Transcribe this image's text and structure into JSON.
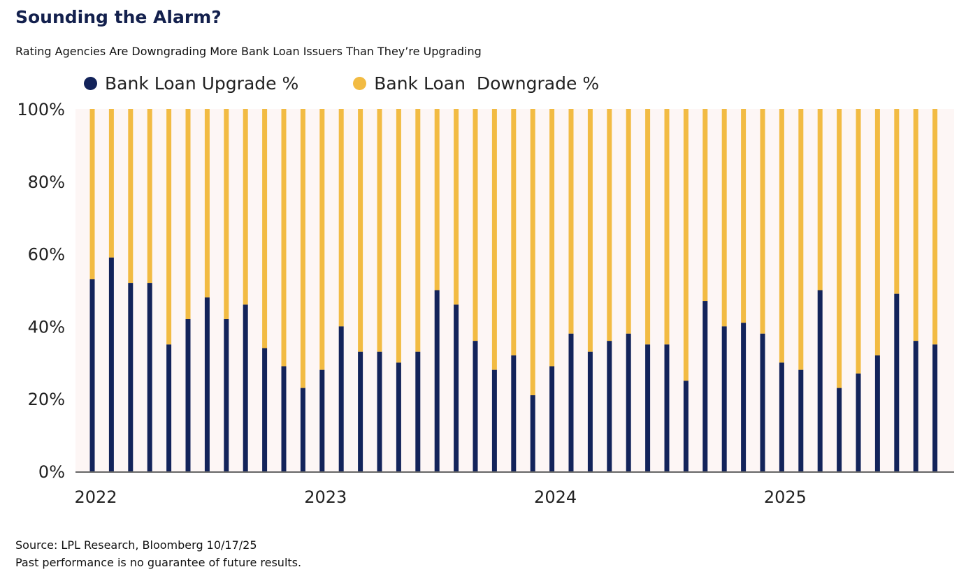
{
  "header": {
    "title": "Sounding the Alarm?",
    "subtitle": "Rating Agencies Are Downgrading More Bank Loan Issuers Than They’re Upgrading"
  },
  "footer": {
    "source": "Source: LPL Research, Bloomberg 10/17/25",
    "disclaimer": "Past performance is no guarantee of future results."
  },
  "colors": {
    "upgrade": "#13235a",
    "downgrade": "#f2bb43",
    "plot_background": "#fdf6f5"
  },
  "chart_data": {
    "type": "bar",
    "stacked": true,
    "title": "Sounding the Alarm?",
    "subtitle": "Rating Agencies Are Downgrading More Bank Loan Issuers Than They’re Upgrading",
    "legend_position": "top-left",
    "grid": false,
    "ylim": [
      0,
      100
    ],
    "yticks": [
      "0%",
      "20%",
      "40%",
      "60%",
      "80%",
      "100%"
    ],
    "xtick_labels": [
      "2022",
      "2023",
      "2024",
      "2025"
    ],
    "series": [
      {
        "name": "Bank Loan Upgrade %",
        "values": [
          53,
          59,
          52,
          52,
          35,
          42,
          48,
          42,
          46,
          34,
          29,
          23,
          28,
          40,
          33,
          33,
          30,
          33,
          50,
          46,
          36,
          28,
          32,
          21,
          29,
          38,
          33,
          36,
          38,
          35,
          35,
          25,
          47,
          40,
          41,
          38,
          30,
          28,
          50,
          23,
          27,
          32,
          49,
          36,
          35
        ]
      },
      {
        "name": "Bank Loan  Downgrade %",
        "values": [
          47,
          41,
          48,
          48,
          65,
          58,
          52,
          58,
          54,
          66,
          71,
          77,
          72,
          60,
          67,
          67,
          70,
          67,
          50,
          54,
          64,
          72,
          68,
          79,
          71,
          62,
          67,
          64,
          62,
          65,
          65,
          75,
          53,
          60,
          59,
          62,
          70,
          72,
          50,
          77,
          73,
          68,
          51,
          64,
          65
        ]
      }
    ]
  }
}
